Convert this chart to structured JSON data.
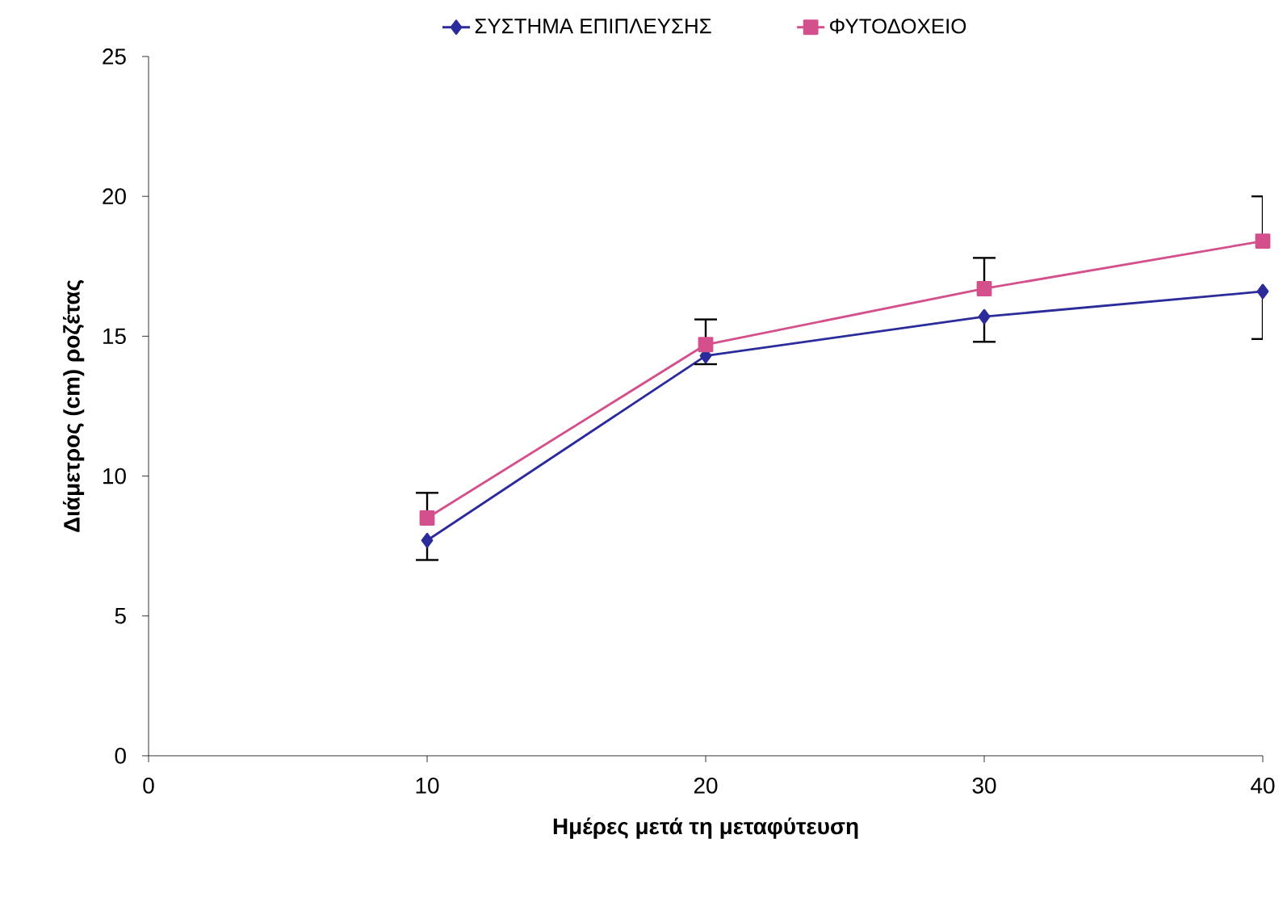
{
  "chart_data": {
    "type": "line",
    "xlabel": "Ημέρες μετά τη μεταφύτευση",
    "ylabel": "Διάμετρος (cm) ροζέτας",
    "x": [
      10,
      20,
      30,
      40
    ],
    "series": [
      {
        "name": "ΣΥΣΤΗΜΑ ΕΠΙΠΛΕΥΣΗΣ",
        "color": "#2b2b9c",
        "marker": "diamond",
        "values": [
          7.7,
          14.3,
          15.7,
          16.6
        ],
        "errors": [
          [
            7.0,
            7.7
          ],
          [
            14.0,
            14.3
          ],
          [
            14.8,
            15.7
          ],
          [
            14.9,
            16.6
          ]
        ]
      },
      {
        "name": "ΦΥΤΟΔΟΧΕΙΟ",
        "color": "#d4508c",
        "marker": "square",
        "values": [
          8.5,
          14.7,
          16.7,
          18.4
        ],
        "errors": [
          [
            8.5,
            9.4
          ],
          [
            14.7,
            15.6
          ],
          [
            16.7,
            17.8
          ],
          [
            18.4,
            20.0
          ]
        ]
      }
    ],
    "xlim": [
      0,
      40
    ],
    "xticks": [
      0,
      10,
      20,
      30,
      40
    ],
    "ylim": [
      0,
      25
    ],
    "yticks": [
      0,
      5,
      10,
      15,
      20,
      25
    ],
    "grid": false,
    "legend": "top",
    "line_style": "solid"
  }
}
